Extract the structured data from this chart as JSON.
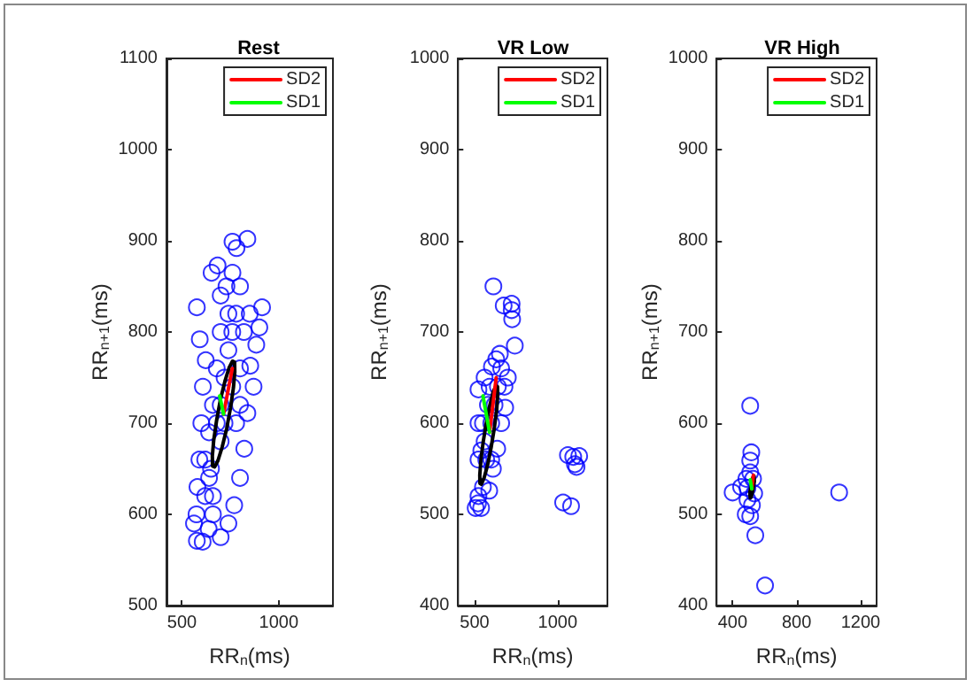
{
  "chart_data": [
    {
      "type": "scatter",
      "title": "Rest",
      "xlabel": "RR$_{n}$(ms)",
      "ylabel": "RR$_{n+1}$(ms)",
      "xlim": [
        420,
        1280
      ],
      "xticks": [
        500,
        1000
      ],
      "ylim": [
        500,
        1100
      ],
      "yticks": [
        500,
        600,
        700,
        800,
        900,
        1000,
        1100
      ],
      "legend": "top right",
      "series": [
        {
          "marker": "circle",
          "color": "#0000ff",
          "x": [
            761,
            838,
            782,
            684,
            653,
            761,
            730,
            800,
            700,
            577,
            592,
            623,
            608,
            600,
            590,
            580,
            575,
            562,
            577,
            607,
            638,
            914,
            900,
            884,
            853,
            870,
            838,
            822,
            800,
            770,
            740,
            700,
            650,
            680,
            700,
            720,
            740,
            760,
            780,
            700,
            660,
            640,
            620,
            720,
            760,
            800,
            820,
            850,
            740,
            700,
            680,
            660,
            640,
            620,
            780,
            800,
            660
          ],
          "values": [
            899,
            902,
            892,
            873,
            865,
            865,
            850,
            850,
            840,
            827,
            792,
            769,
            740,
            700,
            660,
            630,
            600,
            590,
            571,
            570,
            584,
            827,
            805,
            786,
            763,
            740,
            711,
            672,
            640,
            610,
            590,
            575,
            650,
            700,
            720,
            750,
            780,
            800,
            820,
            680,
            620,
            640,
            620,
            700,
            740,
            760,
            800,
            820,
            820,
            800,
            760,
            720,
            690,
            660,
            700,
            720,
            600
          ]
        },
        {
          "type": "line",
          "marker": "none",
          "color": "#000000",
          "x": [
            657,
            658,
            669,
            686,
            708,
            731,
            751,
            766,
            773,
            null,
            773,
            772,
            761,
            744,
            722,
            699,
            679,
            664,
            657
          ],
          "values": [
            664,
            653,
            652,
            659,
            674,
            694,
            717,
            739,
            756,
            null,
            756,
            767,
            768,
            761,
            746,
            726,
            703,
            681,
            664
          ]
        },
        {
          "type": "line",
          "marker": "none",
          "name": "SD2",
          "color": "#ff0000",
          "x": [
            715,
            760
          ],
          "values": [
            710,
            760
          ]
        },
        {
          "type": "line",
          "marker": "none",
          "name": "SD1",
          "color": "#00ff00",
          "x": [
            715,
            695
          ],
          "values": [
            710,
            730
          ]
        }
      ]
    },
    {
      "type": "scatter",
      "title": "VR Low",
      "xlabel": "RR$_{n}$(ms)",
      "ylabel": "RR$_{n+1}$(ms)",
      "xlim": [
        400,
        1300
      ],
      "xticks": [
        500,
        1000
      ],
      "ylim": [
        400,
        1000
      ],
      "yticks": [
        400,
        500,
        600,
        700,
        800,
        900,
        1000
      ],
      "legend": "top right",
      "series": [
        {
          "marker": "circle",
          "color": "#0000ff",
          "x": [
            613,
            675,
            723,
            723,
            726,
            742,
            1062,
            1094,
            1130,
            1114,
            1104,
            1033,
            1081,
            506,
            523,
            523,
            523,
            523,
            560,
            604,
            652,
            700,
            684,
            660,
            636,
            610,
            588,
            539,
            520,
            550,
            570,
            600,
            620,
            640,
            580,
            550,
            540,
            600,
            660,
            630,
            590,
            560,
            680
          ],
          "values": [
            750,
            729,
            731,
            724,
            714,
            685,
            565,
            563,
            564,
            552,
            555,
            513,
            509,
            507,
            520,
            560,
            600,
            637,
            650,
            662,
            676,
            650,
            617,
            600,
            572,
            550,
            526,
            507,
            512,
            530,
            560,
            600,
            620,
            640,
            620,
            600,
            570,
            560,
            660,
            670,
            640,
            580,
            640
          ]
        },
        {
          "type": "line",
          "marker": "none",
          "color": "#000000",
          "x": [
            531,
            532,
            541,
            557,
            578,
            599,
            618,
            633,
            639,
            null,
            639,
            638,
            629,
            613,
            592,
            571,
            552,
            538,
            531
          ],
          "values": [
            543,
            534,
            533,
            540,
            554,
            573,
            594,
            615,
            631,
            null,
            631,
            640,
            641,
            635,
            620,
            601,
            580,
            560,
            543
          ]
        },
        {
          "type": "line",
          "marker": "none",
          "name": "SD2",
          "color": "#ff0000",
          "x": [
            590,
            630
          ],
          "values": [
            590,
            650
          ]
        },
        {
          "type": "line",
          "marker": "none",
          "name": "SD1",
          "color": "#00ff00",
          "x": [
            590,
            550
          ],
          "values": [
            590,
            630
          ]
        }
      ]
    },
    {
      "type": "scatter",
      "title": "VR High",
      "xlabel": "RR$_{n}$(ms)",
      "ylabel": "RR$_{n+1}$(ms)",
      "xlim": [
        300,
        1300
      ],
      "xticks": [
        400,
        800,
        1200
      ],
      "ylim": [
        400,
        1000
      ],
      "yticks": [
        400,
        500,
        600,
        700,
        800,
        900,
        1000
      ],
      "legend": "top right",
      "series": [
        {
          "marker": "circle",
          "color": "#0000ff",
          "x": [
            510,
            517,
            400,
            453,
            542,
            603,
            1066,
            486,
            510,
            528,
            493,
            521,
            482,
            510,
            535,
            493,
            510
          ],
          "values": [
            619,
            568,
            524,
            530,
            477,
            422,
            524,
            539,
            546,
            539,
            516,
            510,
            500,
            498,
            523,
            529,
            559
          ]
        },
        {
          "type": "line",
          "marker": "none",
          "color": "#000000",
          "x": [
            508,
            510,
            516,
            526,
            536,
            null,
            536,
            534,
            528,
            518,
            508
          ],
          "values": [
            524,
            518,
            519,
            526,
            536,
            null,
            536,
            542,
            541,
            534,
            524
          ]
        },
        {
          "type": "line",
          "marker": "none",
          "name": "SD2",
          "color": "#ff0000",
          "x": [
            520,
            530
          ],
          "values": [
            528,
            543
          ]
        },
        {
          "type": "line",
          "marker": "none",
          "name": "SD1",
          "color": "#00ff00",
          "x": [
            520,
            510
          ],
          "values": [
            528,
            538
          ]
        }
      ]
    }
  ]
}
